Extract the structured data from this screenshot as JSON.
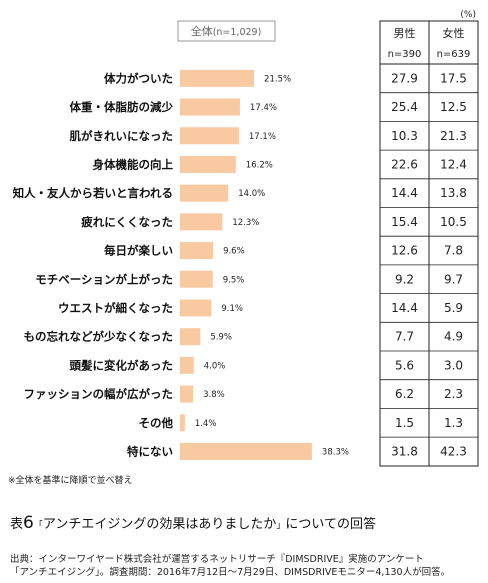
{
  "header": {
    "overall_label": "全体",
    "overall_n": "(n=1,029)",
    "unit": "(%)",
    "col_male": "男性",
    "col_female": "女性",
    "n_male": "n=390",
    "n_female": "n=639"
  },
  "chart_data": {
    "type": "bar",
    "orientation": "horizontal",
    "bar_color": "#f9c9a2",
    "categories": [
      "体力がついた",
      "体重・体脂肪の減少",
      "肌がきれいになった",
      "身体機能の向上",
      "知人・友人から若いと言われる",
      "疲れにくくなった",
      "毎日が楽しい",
      "モチベーションが上がった",
      "ウエストが細くなった",
      "もの忘れなどが少なくなった",
      "頭髪に変化があった",
      "ファッションの幅が広がった",
      "その他",
      "特にない"
    ],
    "series": [
      {
        "name": "全体",
        "values": [
          21.5,
          17.4,
          17.1,
          16.2,
          14.0,
          12.3,
          9.6,
          9.5,
          9.1,
          5.9,
          4.0,
          3.8,
          1.4,
          38.3
        ]
      }
    ],
    "value_labels": [
      "21.5%",
      "17.4%",
      "17.1%",
      "16.2%",
      "14.0%",
      "12.3%",
      "9.6%",
      "9.5%",
      "9.1%",
      "5.9%",
      "4.0%",
      "3.8%",
      "1.4%",
      "38.3%"
    ],
    "table": {
      "male": [
        "27.9",
        "25.4",
        "10.3",
        "22.6",
        "14.4",
        "15.4",
        "12.6",
        "9.2",
        "14.4",
        "7.7",
        "5.6",
        "6.2",
        "1.5",
        "31.8"
      ],
      "female": [
        "17.5",
        "12.5",
        "21.3",
        "12.4",
        "13.8",
        "10.5",
        "7.8",
        "9.7",
        "5.9",
        "4.9",
        "3.0",
        "2.3",
        "1.3",
        "42.3"
      ]
    },
    "xlim": [
      0,
      45
    ]
  },
  "note": "※全体を基準に降順で並べ替え",
  "caption": {
    "prefix": "表",
    "number": "6",
    "open_quote": "「",
    "title": "アンチエイジングの効果はありましたか",
    "close_quote": "」",
    "suffix": "についての回答"
  },
  "source": {
    "line1": "出典：インターワイヤード株式会社が運営するネットリサーチ『DIMSDRIVE』実施のアンケート",
    "line2": "「アンチエイジング」。調査期間：2016年7月12日～7月29日、DIMSDRIVEモニター4,130人が回答。"
  }
}
